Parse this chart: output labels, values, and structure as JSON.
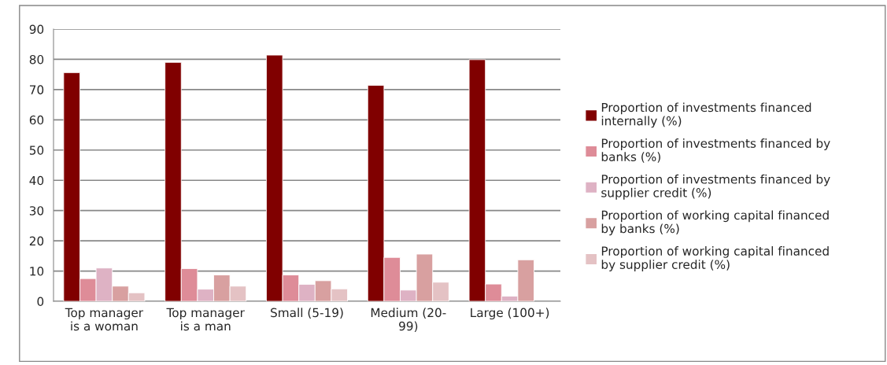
{
  "chart_data": {
    "type": "bar",
    "categories": [
      "Top manager\nis a woman",
      "Top manager\nis a man",
      "Small (5-19)",
      "Medium (20-\n99)",
      "Large (100+)"
    ],
    "series": [
      {
        "name": "Proportion of investments financed\ninternally (%)",
        "color": "#800000",
        "values": [
          75.6,
          79.0,
          81.4,
          71.4,
          79.9
        ]
      },
      {
        "name": "Proportion of investments financed by\nbanks (%)",
        "color": "#de8c98",
        "values": [
          7.5,
          10.8,
          8.7,
          14.5,
          5.7
        ]
      },
      {
        "name": "Proportion of investments financed by\nsupplier credit (%)",
        "color": "#deb2c4",
        "values": [
          11.0,
          4.0,
          5.6,
          3.7,
          1.7
        ]
      },
      {
        "name": "Proportion of working capital financed\nby banks (%)",
        "color": "#d8a0a0",
        "values": [
          5.0,
          8.7,
          6.8,
          15.6,
          13.7
        ]
      },
      {
        "name": "Proportion of working capital financed\nby supplier credit (%)",
        "color": "#e4c2c4",
        "values": [
          2.8,
          5.0,
          4.1,
          6.3,
          null
        ]
      }
    ],
    "ylim": [
      0,
      90
    ],
    "yticks": [
      0,
      10,
      20,
      30,
      40,
      50,
      60,
      70,
      80,
      90
    ],
    "grid": "y",
    "legend": "right"
  }
}
